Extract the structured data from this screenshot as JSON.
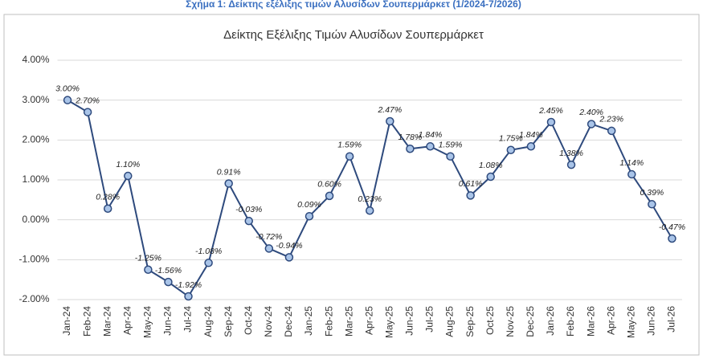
{
  "chart_data": {
    "type": "line",
    "caption": "Σχήμα 1: Δείκτης εξέλιξης τιμών Αλυσίδων Σουπερμάρκετ (1/2024-7/2026)",
    "title": "Δείκτης Εξέλιξης Τιμών Αλυσίδων Σουπερμάρκετ",
    "categories": [
      "Jan-24",
      "Feb-24",
      "Mar-24",
      "Apr-24",
      "May-24",
      "Jun-24",
      "Jul-24",
      "Aug-24",
      "Sep-24",
      "Oct-24",
      "Nov-24",
      "Dec-24",
      "Jan-25",
      "Feb-25",
      "Mar-25",
      "Apr-25",
      "May-25",
      "Jun-25",
      "Jul-25",
      "Aug-25",
      "Sep-25",
      "Oct-25",
      "Nov-25",
      "Dec-25",
      "Jan-26",
      "Feb-26",
      "Mar-26",
      "Apr-26",
      "May-26",
      "Jun-26",
      "Jul-26"
    ],
    "values": [
      3.0,
      2.7,
      0.28,
      1.1,
      -1.25,
      -1.56,
      -1.92,
      -1.08,
      0.91,
      -0.03,
      -0.72,
      -0.94,
      0.09,
      0.6,
      1.59,
      0.23,
      2.47,
      1.78,
      1.84,
      1.59,
      0.61,
      1.08,
      1.75,
      1.84,
      2.45,
      1.38,
      2.4,
      2.23,
      1.14,
      0.39,
      -0.47
    ],
    "value_labels": [
      "3.00%",
      "2.70%",
      "0.28%",
      "1.10%",
      "-1.25%",
      "-1.56%",
      "-1.92%",
      "-1.08%",
      "0.91%",
      "-0.03%",
      "-0.72%",
      "-0.94%",
      "0.09%",
      "0.60%",
      "1.59%",
      "0.23%",
      "2.47%",
      "1.78%",
      "1.84%",
      "1.59%",
      "0.61%",
      "1.08%",
      "1.75%",
      "1.84%",
      "2.45%",
      "1.38%",
      "2.40%",
      "2.23%",
      "1.14%",
      "0.39%",
      "-0.47%"
    ],
    "color": "#2e4a7d",
    "marker_color": "#a9c4e8",
    "ylim": [
      -2,
      4
    ],
    "yticks": [
      {
        "value": -2,
        "label": "-2.00%"
      },
      {
        "value": -1,
        "label": "-1.00%"
      },
      {
        "value": 0,
        "label": "0.00%"
      },
      {
        "value": 1,
        "label": "1.00%"
      },
      {
        "value": 2,
        "label": "2.00%"
      },
      {
        "value": 3,
        "label": "3.00%"
      },
      {
        "value": 4,
        "label": "4.00%"
      }
    ],
    "grid": true
  }
}
